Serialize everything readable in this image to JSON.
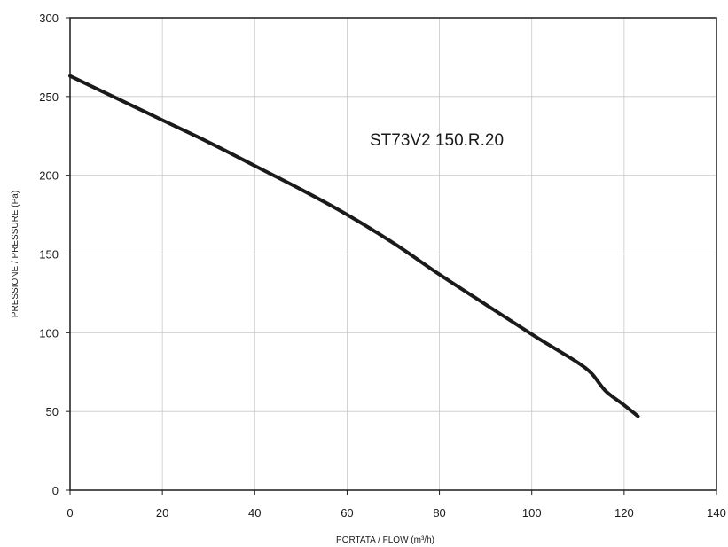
{
  "chart_data": {
    "type": "line",
    "title": "",
    "annotation": "ST73V2 150.R.20",
    "xlabel": "PORTATA / FLOW (m³/h)",
    "ylabel": "PRESSIONE / PRESSURE (Pa)",
    "xlim": [
      0,
      140
    ],
    "ylim": [
      0,
      300
    ],
    "xticks": [
      0,
      20,
      40,
      60,
      80,
      100,
      120,
      140
    ],
    "yticks": [
      0,
      50,
      100,
      150,
      200,
      250,
      300
    ],
    "grid": true,
    "legend": "none",
    "series": [
      {
        "color": "#1a1a1a",
        "x": [
          0,
          10,
          20,
          30,
          40,
          50,
          60,
          70,
          80,
          90,
          100,
          105,
          110,
          113,
          116,
          120,
          123
        ],
        "y": [
          263,
          249,
          235,
          221,
          206,
          191,
          175,
          157,
          137,
          118,
          99,
          90,
          81,
          74,
          63,
          54,
          47
        ]
      }
    ]
  }
}
